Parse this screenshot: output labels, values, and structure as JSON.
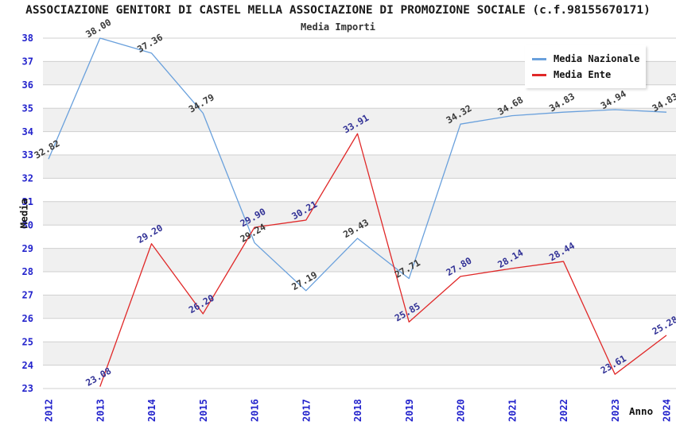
{
  "header": {
    "title": "ASSOCIAZIONE GENITORI DI CASTEL MELLA ASSOCIAZIONE DI PROMOZIONE SOCIALE (c.f.98155670171)",
    "subtitle": "Media Importi"
  },
  "legend": {
    "items": [
      {
        "label": "Media Nazionale",
        "color": "#69a0dc"
      },
      {
        "label": "Media Ente",
        "color": "#e02828"
      }
    ]
  },
  "axes": {
    "x_label": "Anno",
    "y_label": "Media",
    "tick_color": "#2323cc",
    "x_ticks": [
      "2012",
      "2013",
      "2014",
      "2015",
      "2016",
      "2017",
      "2018",
      "2019",
      "2020",
      "2021",
      "2022",
      "2023",
      "2024"
    ],
    "y_ticks": [
      23,
      24,
      25,
      26,
      27,
      28,
      29,
      30,
      31,
      32,
      33,
      34,
      35,
      36,
      37,
      38
    ]
  },
  "style": {
    "background": "#ffffff",
    "band_color": "#f0f0f0",
    "grid_color": "#cfcfcf"
  },
  "chart_data": {
    "type": "line",
    "title": "Media Importi",
    "xlabel": "Anno",
    "ylabel": "Media",
    "x": [
      2012,
      2013,
      2014,
      2015,
      2016,
      2017,
      2018,
      2019,
      2020,
      2021,
      2022,
      2023,
      2024
    ],
    "ylim": [
      23,
      38
    ],
    "y_tick_step": 1,
    "grid": true,
    "band_shading": "alternating-horizontal",
    "legend_position": "top-right",
    "series": [
      {
        "name": "Media Nazionale",
        "color": "#69a0dc",
        "label_color": "#3a3a3a",
        "values": [
          32.82,
          38.0,
          37.36,
          34.79,
          29.24,
          27.19,
          29.43,
          27.71,
          34.32,
          34.68,
          34.83,
          34.94,
          34.83
        ]
      },
      {
        "name": "Media Ente",
        "color": "#e02828",
        "label_color": "#323296",
        "values": [
          null,
          23.08,
          29.2,
          26.2,
          29.9,
          30.21,
          33.91,
          25.85,
          27.8,
          28.14,
          28.44,
          23.61,
          25.28
        ]
      }
    ]
  }
}
